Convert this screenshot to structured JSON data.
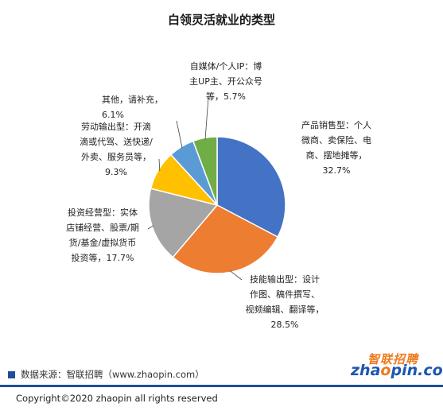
{
  "chart_data": {
    "type": "pie",
    "title": "白领灵活就业的类型",
    "slices": [
      {
        "label": "产品销售型：个人\n微商、卖保险、电\n商、摆地摊等，",
        "pct_text": "32.7%",
        "value": 32.7,
        "color": "#4472c4"
      },
      {
        "label": "技能输出型：设计\n作图、稿件撰写、\n视频编辑、翻译等，",
        "pct_text": "28.5%",
        "value": 28.5,
        "color": "#ed7d31"
      },
      {
        "label": "投资经营型：实体\n店铺经营、股票/期\n货/基金/虚拟货币\n投资等，",
        "pct_text": "17.7%",
        "value": 17.7,
        "color": "#a5a5a5"
      },
      {
        "label": "劳动输出型：开滴\n滴或代驾、送快递/\n外卖、服务员等，",
        "pct_text": "9.3%",
        "value": 9.3,
        "color": "#ffc000"
      },
      {
        "label": "其他，请补充，",
        "pct_text": "6.1%",
        "value": 6.1,
        "color": "#5b9bd5"
      },
      {
        "label": "自媒体/个人IP：博\n主UP主、开公众号\n等，",
        "pct_text": "5.7%",
        "value": 5.7,
        "color": "#70ad47"
      }
    ]
  },
  "source": "数据来源：智联招聘（www.zhaopin.com）",
  "logo": {
    "cn": "智联招聘",
    "en_a": "zha",
    "en_o": "o",
    "en_b": "pin.com"
  },
  "copyright": "Copyright©2020 zhaopin all rights reserved"
}
